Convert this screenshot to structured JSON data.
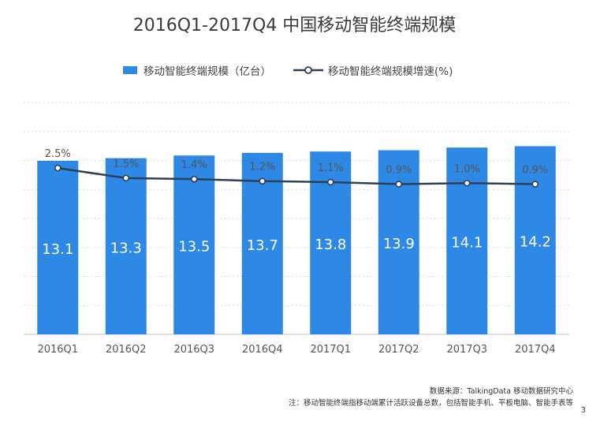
{
  "title": "2016Q1-2017Q4 中国移动智能终端规模",
  "legend": {
    "bar_label": "移动智能终端规模（亿台）",
    "line_label": "移动智能终端规模增速(%)"
  },
  "chart_data": {
    "type": "bar",
    "categories": [
      "2016Q1",
      "2016Q2",
      "2016Q3",
      "2016Q4",
      "2017Q1",
      "2017Q2",
      "2017Q3",
      "2017Q4"
    ],
    "series": [
      {
        "name": "移动智能终端规模（亿台）",
        "type": "bar",
        "values": [
          13.1,
          13.3,
          13.5,
          13.7,
          13.8,
          13.9,
          14.1,
          14.2
        ]
      },
      {
        "name": "移动智能终端规模增速(%)",
        "type": "line",
        "values": [
          2.5,
          1.5,
          1.4,
          1.2,
          1.1,
          0.9,
          1.0,
          0.9
        ]
      }
    ],
    "bar_labels": [
      "13.1",
      "13.3",
      "13.5",
      "13.7",
      "13.8",
      "13.9",
      "14.1",
      "14.2"
    ],
    "line_labels": [
      "2.5%",
      "1.5%",
      "1.4%",
      "1.2%",
      "1.1%",
      "0.9%",
      "1.0%",
      "0.9%"
    ],
    "grid": true,
    "legend_position": "top",
    "colors": {
      "bar": "#2e88e6",
      "line": "#2f3f57",
      "grid": "#d9d9d9"
    }
  },
  "footnotes": {
    "source": "数据来源：TalkingData 移动数据研究中心",
    "note": "注：移动智能终端指移动端累计活跃设备总数，包括智能手机、平板电脑、智能手表等"
  },
  "page_number": "3"
}
